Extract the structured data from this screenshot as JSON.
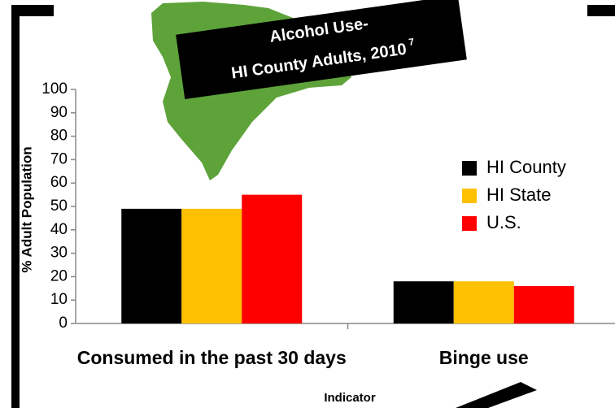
{
  "chart_data": {
    "type": "bar",
    "title_lines": [
      "Alcohol Use-",
      "HI County Adults, 2010"
    ],
    "title_footnote": "7",
    "categories": [
      "Consumed in the past 30 days",
      "Binge use"
    ],
    "series": [
      {
        "name": "HI County",
        "color": "#000000",
        "values": [
          49,
          18
        ]
      },
      {
        "name": "HI State",
        "color": "#ffc000",
        "values": [
          49,
          18
        ]
      },
      {
        "name": "U.S.",
        "color": "#ff0000",
        "values": [
          55,
          16
        ]
      }
    ],
    "ylim": [
      0,
      100
    ],
    "yticks": [
      0,
      10,
      20,
      30,
      40,
      50,
      60,
      70,
      80,
      90,
      100
    ],
    "y_label": "% Adult Population",
    "x_label": "Indicator",
    "grid": false
  }
}
